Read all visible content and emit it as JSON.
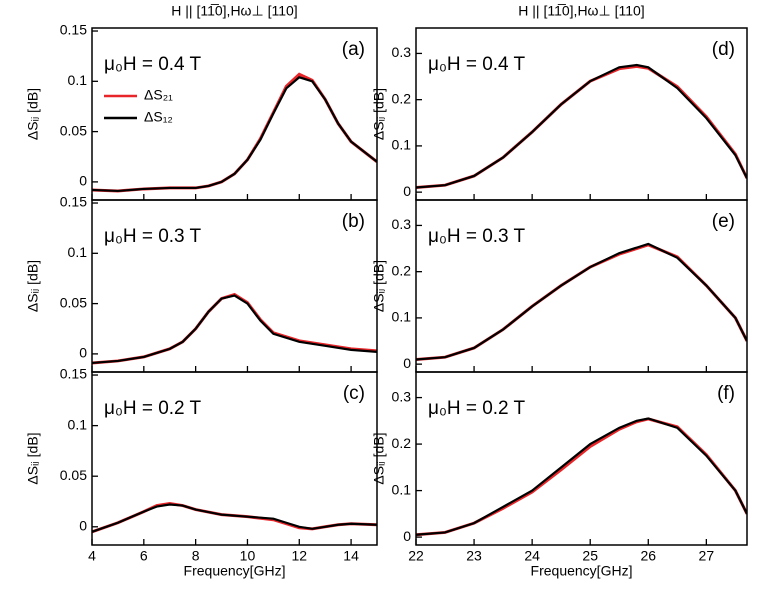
{
  "chart_data": [
    {
      "type": "line",
      "title": "H || [11̅0],Hω⊥ [110]",
      "ylabel": "ΔSᵢⱼ [dB]",
      "field_label": "μ₀H = 0.4 T",
      "panel_label": "(a)",
      "x": [
        4,
        5,
        6,
        7,
        8,
        8.5,
        9,
        9.5,
        10,
        10.5,
        11,
        11.5,
        12,
        12.5,
        13,
        13.5,
        14,
        15
      ],
      "series": [
        {
          "name": "ΔS₂₁",
          "color": "#e8262a",
          "values": [
            -0.008,
            -0.009,
            -0.007,
            -0.006,
            -0.006,
            -0.004,
            0.0,
            0.008,
            0.022,
            0.043,
            0.069,
            0.095,
            0.107,
            0.101,
            0.082,
            0.058,
            0.04,
            0.02
          ]
        },
        {
          "name": "ΔS₁₂",
          "color": "#000000",
          "values": [
            -0.008,
            -0.009,
            -0.007,
            -0.006,
            -0.006,
            -0.004,
            0.0,
            0.008,
            0.022,
            0.042,
            0.068,
            0.093,
            0.104,
            0.1,
            0.082,
            0.058,
            0.04,
            0.02
          ]
        }
      ],
      "xlim": [
        4,
        15
      ],
      "xticks": [
        4,
        6,
        8,
        10,
        12,
        14
      ],
      "ylim": [
        -0.018,
        0.153
      ],
      "yticks": [
        0,
        0.05,
        0.1,
        0.15
      ],
      "legend": "upper left"
    },
    {
      "type": "line",
      "ylabel": "ΔSᵢⱼ [dB]",
      "field_label": "μ₀H = 0.3 T",
      "panel_label": "(b)",
      "x": [
        4,
        5,
        6,
        7,
        7.5,
        8,
        8.5,
        9,
        9.5,
        10,
        10.5,
        11,
        12,
        13,
        14,
        15
      ],
      "series": [
        {
          "color": "#e8262a",
          "values": [
            -0.009,
            -0.007,
            -0.003,
            0.005,
            0.012,
            0.025,
            0.042,
            0.055,
            0.059,
            0.051,
            0.034,
            0.021,
            0.013,
            0.009,
            0.005,
            0.003
          ]
        },
        {
          "color": "#000000",
          "values": [
            -0.009,
            -0.007,
            -0.003,
            0.005,
            0.012,
            0.025,
            0.042,
            0.055,
            0.058,
            0.05,
            0.033,
            0.02,
            0.012,
            0.008,
            0.004,
            0.002
          ]
        }
      ],
      "xlim": [
        4,
        15
      ],
      "xticks": [
        4,
        6,
        8,
        10,
        12,
        14
      ],
      "ylim": [
        -0.018,
        0.153
      ],
      "yticks": [
        0,
        0.05,
        0.1,
        0.15
      ]
    },
    {
      "type": "line",
      "xlabel": "Frequency[GHz]",
      "ylabel": "ΔSᵢⱼ [dB]",
      "field_label": "μ₀H = 0.2 T",
      "panel_label": "(c)",
      "x": [
        4,
        5,
        6,
        6.5,
        7,
        7.5,
        8,
        9,
        10,
        11,
        11.5,
        12,
        12.5,
        13,
        13.5,
        14,
        15
      ],
      "series": [
        {
          "color": "#e8262a",
          "values": [
            -0.005,
            0.004,
            0.015,
            0.021,
            0.023,
            0.021,
            0.017,
            0.012,
            0.01,
            0.007,
            0.003,
            -0.001,
            -0.002,
            0.0,
            0.002,
            0.003,
            0.002
          ]
        },
        {
          "color": "#000000",
          "values": [
            -0.005,
            0.004,
            0.015,
            0.02,
            0.022,
            0.021,
            0.017,
            0.012,
            0.01,
            0.008,
            0.004,
            0.0,
            -0.002,
            0.0,
            0.002,
            0.003,
            0.002
          ]
        }
      ],
      "xlim": [
        4,
        15
      ],
      "xticks": [
        4,
        6,
        8,
        10,
        12,
        14
      ],
      "ylim": [
        -0.018,
        0.153
      ],
      "yticks": [
        0,
        0.05,
        0.1,
        0.15
      ]
    },
    {
      "type": "line",
      "title": "H || [11̅0],Hω⊥ [110]",
      "ylabel": "ΔSᵢⱼ [dB]",
      "field_label": "μ₀H = 0.4 T",
      "panel_label": "(d)",
      "x": [
        22,
        22.5,
        23,
        23.5,
        24,
        24.5,
        25,
        25.5,
        25.8,
        26,
        26.5,
        27,
        27.5,
        27.7
      ],
      "series": [
        {
          "color": "#e8262a",
          "values": [
            0.01,
            0.015,
            0.035,
            0.075,
            0.13,
            0.19,
            0.24,
            0.267,
            0.272,
            0.268,
            0.228,
            0.163,
            0.082,
            0.03
          ]
        },
        {
          "color": "#000000",
          "values": [
            0.01,
            0.015,
            0.035,
            0.075,
            0.13,
            0.19,
            0.24,
            0.27,
            0.275,
            0.27,
            0.225,
            0.16,
            0.08,
            0.03
          ]
        }
      ],
      "xlim": [
        22,
        27.7
      ],
      "xticks": [
        22,
        23,
        24,
        25,
        26,
        27
      ],
      "ylim": [
        -0.017,
        0.355
      ],
      "yticks": [
        0,
        0.1,
        0.2,
        0.3
      ]
    },
    {
      "type": "line",
      "ylabel": "ΔSᵢⱼ [dB]",
      "field_label": "μ₀H = 0.3 T",
      "panel_label": "(e)",
      "x": [
        22,
        22.5,
        23,
        23.5,
        24,
        24.5,
        25,
        25.5,
        25.8,
        26,
        26.5,
        27,
        27.5,
        27.7
      ],
      "series": [
        {
          "color": "#e8262a",
          "values": [
            0.01,
            0.015,
            0.035,
            0.075,
            0.125,
            0.17,
            0.21,
            0.238,
            0.25,
            0.258,
            0.232,
            0.17,
            0.1,
            0.05
          ]
        },
        {
          "color": "#000000",
          "values": [
            0.01,
            0.015,
            0.035,
            0.075,
            0.125,
            0.17,
            0.21,
            0.24,
            0.252,
            0.26,
            0.23,
            0.17,
            0.1,
            0.05
          ]
        }
      ],
      "xlim": [
        22,
        27.7
      ],
      "xticks": [
        22,
        23,
        24,
        25,
        26,
        27
      ],
      "ylim": [
        -0.017,
        0.355
      ],
      "yticks": [
        0,
        0.1,
        0.2,
        0.3
      ]
    },
    {
      "type": "line",
      "xlabel": "Frequency[GHz]",
      "ylabel": "ΔSᵢⱼ [dB]",
      "field_label": "μ₀H = 0.2 T",
      "panel_label": "(f)",
      "x": [
        22,
        22.5,
        23,
        23.5,
        24,
        24.5,
        25,
        25.5,
        25.8,
        26,
        26.5,
        27,
        27.5,
        27.7
      ],
      "series": [
        {
          "color": "#e8262a",
          "values": [
            0.005,
            0.01,
            0.03,
            0.062,
            0.097,
            0.145,
            0.195,
            0.232,
            0.248,
            0.254,
            0.237,
            0.177,
            0.1,
            0.05
          ]
        },
        {
          "color": "#000000",
          "values": [
            0.005,
            0.01,
            0.03,
            0.065,
            0.1,
            0.15,
            0.2,
            0.235,
            0.25,
            0.255,
            0.235,
            0.175,
            0.1,
            0.05
          ]
        }
      ],
      "xlim": [
        22,
        27.7
      ],
      "xticks": [
        22,
        23,
        24,
        25,
        26,
        27
      ],
      "ylim": [
        -0.017,
        0.355
      ],
      "yticks": [
        0,
        0.1,
        0.2,
        0.3
      ]
    }
  ]
}
